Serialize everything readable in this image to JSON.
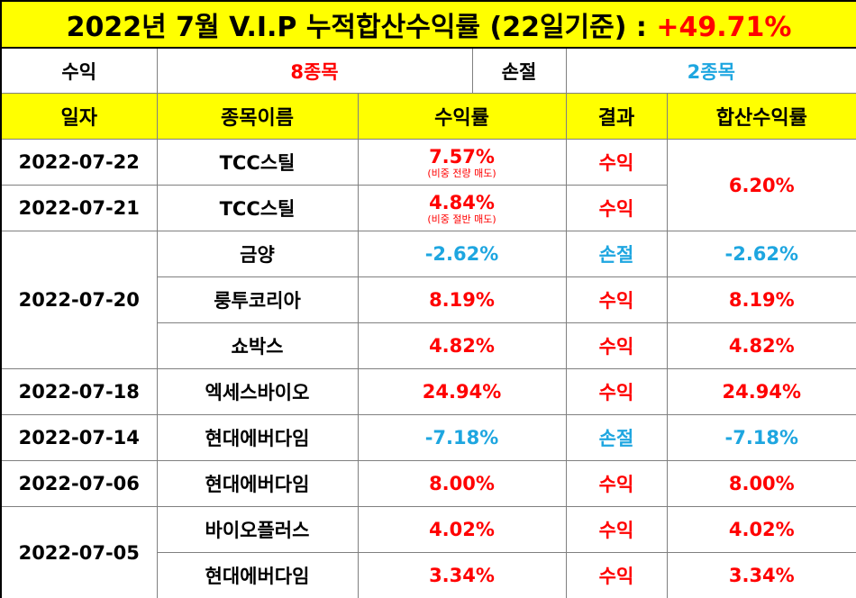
{
  "title": {
    "prefix": "2022년 7월 V.I.P 누적합산수익률 (22일기준) : ",
    "value": "+49.71%"
  },
  "summary": {
    "profit_label": "수익",
    "profit_value": "8종목",
    "loss_label": "손절",
    "loss_value": "2종목"
  },
  "headers": [
    "일자",
    "종목이름",
    "수익률",
    "결과",
    "합산수익률"
  ],
  "rows": [
    {
      "date": "2022-07-22",
      "name": "TCC스틸",
      "rate": "7.57%",
      "note": "(비중 전량 매도)",
      "result": "수익",
      "sum": "6.20%"
    },
    {
      "date": "2022-07-21",
      "name": "TCC스틸",
      "rate": "4.84%",
      "note": "(비중 절반 매도)",
      "result": "수익"
    },
    {
      "date": "2022-07-20",
      "name": "금양",
      "rate": "-2.62%",
      "result": "손절",
      "sum": "-2.62%"
    },
    {
      "name": "룽투코리아",
      "rate": "8.19%",
      "result": "수익",
      "sum": "8.19%"
    },
    {
      "name": "쇼박스",
      "rate": "4.82%",
      "result": "수익",
      "sum": "4.82%"
    },
    {
      "date": "2022-07-18",
      "name": "엑세스바이오",
      "rate": "24.94%",
      "result": "수익",
      "sum": "24.94%"
    },
    {
      "date": "2022-07-14",
      "name": "현대에버다임",
      "rate": "-7.18%",
      "result": "손절",
      "sum": "-7.18%"
    },
    {
      "date": "2022-07-06",
      "name": "현대에버다임",
      "rate": "8.00%",
      "result": "수익",
      "sum": "8.00%"
    },
    {
      "date": "2022-07-05",
      "name": "바이오플러스",
      "rate": "4.02%",
      "result": "수익",
      "sum": "4.02%"
    },
    {
      "name": "현대에버다임",
      "rate": "3.34%",
      "result": "수익",
      "sum": "3.34%"
    }
  ],
  "colors": {
    "header_bg": "#ffff00",
    "profit": "#ff0000",
    "loss": "#1ea6e0"
  }
}
